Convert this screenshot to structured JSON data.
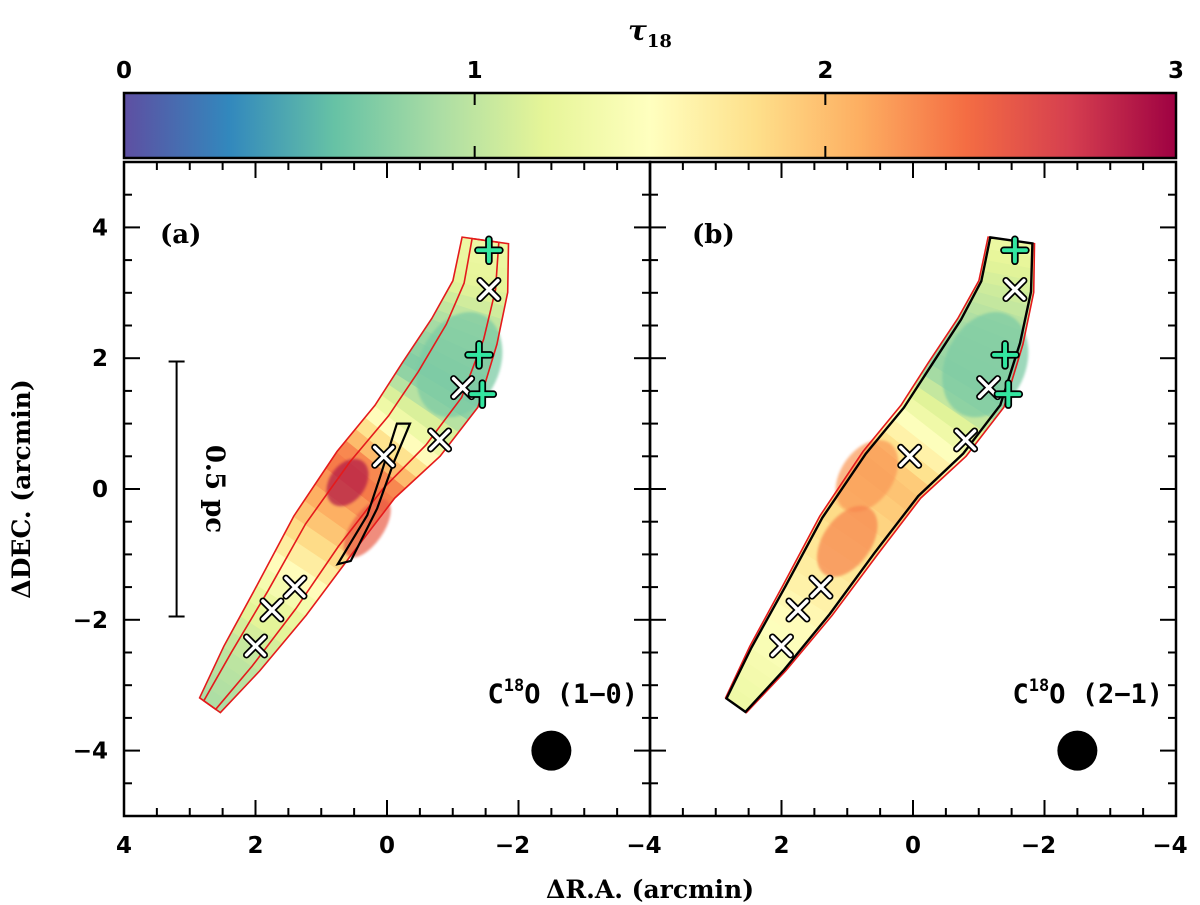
{
  "chart_data": {
    "type": "heatmap",
    "colorbar": {
      "title": "τ",
      "title_subscript": "18",
      "range": [
        0,
        3
      ],
      "tick_values": [
        0,
        1,
        2,
        3
      ],
      "tick_labels": [
        "0",
        "1",
        "2",
        "3"
      ],
      "colormap": [
        "#5e4fa2",
        "#3288bd",
        "#66c2a5",
        "#abdda4",
        "#e6f598",
        "#ffffbf",
        "#fee08b",
        "#fdae61",
        "#f46d43",
        "#d53e4f",
        "#9e0142"
      ]
    },
    "axes": {
      "xlabel": "ΔR.A. (arcmin)",
      "ylabel": "ΔDEC. (arcmin)",
      "xlim": [
        4,
        -4
      ],
      "ylim": [
        -5,
        5
      ],
      "x_ticks_a": [
        "4",
        "2",
        "0",
        "−2",
        "−4"
      ],
      "x_ticks_b": [
        "2",
        "0",
        "−2",
        "−4"
      ],
      "y_ticks": [
        "4",
        "2",
        "0",
        "−2",
        "−4"
      ],
      "x_tick_values": [
        4,
        2,
        0,
        -2,
        -4
      ],
      "y_tick_values": [
        4,
        2,
        0,
        -2,
        -4
      ]
    },
    "scalebar": {
      "label": "0.5 pc",
      "x": 3.2,
      "y_range": [
        -1.95,
        1.95
      ]
    },
    "beam_position": [
      -2.5,
      -4.0
    ],
    "spine": [
      [
        2.7,
        -3.3
      ],
      [
        2.2,
        -2.6
      ],
      [
        1.6,
        -1.7
      ],
      [
        1.0,
        -0.7
      ],
      [
        0.3,
        0.2
      ],
      [
        -0.3,
        0.9
      ],
      [
        -0.8,
        1.6
      ],
      [
        -1.2,
        2.4
      ],
      [
        -1.4,
        3.1
      ],
      [
        -1.5,
        3.8
      ]
    ],
    "half_widths": [
      0.18,
      0.3,
      0.42,
      0.48,
      0.52,
      0.6,
      0.6,
      0.5,
      0.4,
      0.32
    ],
    "crosses": [
      [
        2.0,
        -2.4
      ],
      [
        1.75,
        -1.85
      ],
      [
        1.4,
        -1.5
      ],
      [
        0.05,
        0.5
      ],
      [
        -0.8,
        0.75
      ],
      [
        -1.15,
        1.55
      ],
      [
        -1.55,
        3.05
      ]
    ],
    "plus_markers": [
      [
        -1.55,
        3.65
      ],
      [
        -1.4,
        2.05
      ],
      [
        -1.45,
        1.45
      ]
    ],
    "panels": [
      {
        "label": "(a)",
        "line_prefix": "C",
        "line_superscript": "18",
        "line_suffix": "O (1−0)",
        "tau_profile": [
          0.9,
          1.0,
          1.3,
          1.9,
          2.4,
          1.4,
          0.7,
          0.9,
          1.2,
          1.3
        ]
      },
      {
        "label": "(b)",
        "line_prefix": "C",
        "line_superscript": "18",
        "line_suffix": "O (2−1)",
        "tau_profile": [
          1.3,
          1.4,
          1.6,
          1.8,
          2.0,
          1.4,
          0.8,
          0.9,
          1.1,
          1.3
        ]
      }
    ]
  }
}
